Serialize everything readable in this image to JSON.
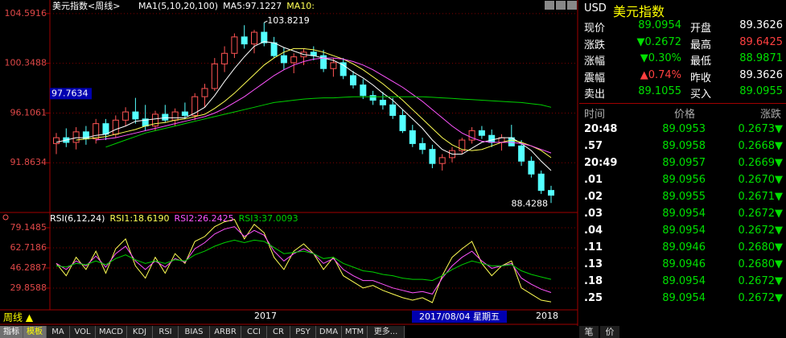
{
  "chart_data": [
    {
      "type": "candlestick",
      "title": "美元指数<周线>",
      "legend": [
        "MA1(5,10,20,100)",
        "MA5:97.1227",
        "MA10:"
      ],
      "up_color": "#ff5454",
      "down_color": "#54ffff",
      "ohlc": [
        [
          93.5,
          94.4,
          92.6,
          94.0
        ],
        [
          94.0,
          94.8,
          93.2,
          93.6
        ],
        [
          93.6,
          94.9,
          93.0,
          94.5
        ],
        [
          94.5,
          95.0,
          93.4,
          93.9
        ],
        [
          93.9,
          95.6,
          93.5,
          95.2
        ],
        [
          95.2,
          95.6,
          93.8,
          94.3
        ],
        [
          94.3,
          95.9,
          94.0,
          95.5
        ],
        [
          95.5,
          96.6,
          95.0,
          96.2
        ],
        [
          96.2,
          97.4,
          95.2,
          95.6
        ],
        [
          95.6,
          96.8,
          94.6,
          95.0
        ],
        [
          95.0,
          96.3,
          94.6,
          96.0
        ],
        [
          96.0,
          96.8,
          95.3,
          95.5
        ],
        [
          95.5,
          96.5,
          95.0,
          96.2
        ],
        [
          96.2,
          97.0,
          95.6,
          95.9
        ],
        [
          95.9,
          97.8,
          95.5,
          97.5
        ],
        [
          97.5,
          98.6,
          96.6,
          98.2
        ],
        [
          98.2,
          100.8,
          98.0,
          100.3
        ],
        [
          100.3,
          101.8,
          99.6,
          101.2
        ],
        [
          101.2,
          102.9,
          100.8,
          102.6
        ],
        [
          102.6,
          103.6,
          101.6,
          102.0
        ],
        [
          102.0,
          103.2,
          101.2,
          103.0
        ],
        [
          103.0,
          103.8219,
          101.8,
          102.1
        ],
        [
          102.1,
          102.6,
          100.8,
          101.0
        ],
        [
          101.0,
          101.7,
          99.8,
          100.4
        ],
        [
          100.4,
          101.2,
          99.5,
          100.9
        ],
        [
          100.9,
          101.6,
          100.2,
          101.3
        ],
        [
          101.3,
          101.8,
          100.6,
          101.0
        ],
        [
          101.0,
          101.5,
          99.6,
          99.9
        ],
        [
          99.9,
          100.8,
          99.2,
          100.4
        ],
        [
          100.4,
          100.8,
          99.0,
          99.3
        ],
        [
          99.3,
          99.7,
          98.2,
          98.5
        ],
        [
          98.5,
          99.0,
          97.3,
          97.6
        ],
        [
          97.6,
          98.0,
          96.8,
          97.2
        ],
        [
          97.2,
          97.9,
          96.4,
          96.8
        ],
        [
          96.8,
          97.4,
          95.6,
          95.9
        ],
        [
          95.9,
          96.4,
          94.4,
          94.6
        ],
        [
          94.6,
          95.1,
          93.2,
          93.5
        ],
        [
          93.5,
          94.0,
          92.6,
          93.0
        ],
        [
          93.0,
          93.4,
          91.4,
          91.8
        ],
        [
          91.8,
          92.6,
          91.2,
          92.3
        ],
        [
          92.3,
          93.2,
          91.9,
          92.9
        ],
        [
          92.9,
          94.0,
          92.6,
          93.8
        ],
        [
          93.8,
          94.9,
          93.5,
          94.6
        ],
        [
          94.6,
          95.0,
          93.9,
          94.2
        ],
        [
          94.2,
          94.7,
          93.2,
          93.6
        ],
        [
          93.6,
          94.3,
          92.9,
          94.0
        ],
        [
          94.0,
          95.1,
          93.4,
          93.3
        ],
        [
          93.3,
          93.8,
          91.6,
          92.0
        ],
        [
          92.0,
          92.4,
          90.6,
          90.9
        ],
        [
          90.9,
          91.2,
          89.2,
          89.5
        ],
        [
          89.5,
          89.9,
          88.4288,
          89.0954
        ]
      ],
      "series": [
        {
          "color": "#ffffff",
          "values": [
            93.6,
            93.8,
            94.0,
            94.0,
            94.2,
            94.3,
            94.7,
            95.0,
            95.4,
            95.5,
            95.6,
            95.7,
            95.7,
            95.7,
            96.1,
            96.6,
            97.6,
            98.8,
            99.9,
            100.9,
            101.8,
            102.2,
            102.1,
            101.7,
            101.4,
            101.1,
            101.0,
            100.8,
            100.6,
            100.2,
            99.6,
            99.1,
            98.5,
            97.8,
            97.2,
            96.4,
            95.6,
            94.8,
            93.8,
            93.0,
            92.6,
            92.6,
            93.1,
            93.6,
            93.8,
            94.0,
            94.0,
            93.5,
            92.9,
            92.0,
            91.2
          ]
        },
        {
          "color": "#ffff54",
          "values": [
            null,
            null,
            93.8,
            93.9,
            94.0,
            94.1,
            94.3,
            94.5,
            94.7,
            95.0,
            95.2,
            95.3,
            95.5,
            95.6,
            95.8,
            96.0,
            96.5,
            97.1,
            97.8,
            98.6,
            99.4,
            100.2,
            100.8,
            101.3,
            101.6,
            101.6,
            101.5,
            101.3,
            101.0,
            100.7,
            100.3,
            99.8,
            99.2,
            98.6,
            97.9,
            97.2,
            96.4,
            95.6,
            94.8,
            94.0,
            93.4,
            93.0,
            92.9,
            93.0,
            93.3,
            93.6,
            93.8,
            93.6,
            93.3,
            92.9,
            92.3
          ]
        },
        {
          "color": "#ff54ff",
          "values": [
            null,
            null,
            null,
            null,
            93.8,
            93.9,
            94.0,
            94.2,
            94.4,
            94.6,
            94.8,
            95.0,
            95.2,
            95.4,
            95.6,
            95.8,
            96.1,
            96.5,
            97.0,
            97.5,
            98.1,
            98.7,
            99.3,
            99.8,
            100.2,
            100.5,
            100.7,
            100.8,
            100.8,
            100.7,
            100.5,
            100.2,
            99.8,
            99.3,
            98.8,
            98.3,
            97.7,
            97.1,
            96.4,
            95.7,
            95.0,
            94.4,
            94.0,
            93.7,
            93.6,
            93.6,
            93.6,
            93.5,
            93.3,
            93.0,
            92.7
          ]
        },
        {
          "color": "#00d000",
          "values": [
            null,
            null,
            null,
            null,
            null,
            93.2,
            93.5,
            93.8,
            94.1,
            94.4,
            94.6,
            94.8,
            95.0,
            95.2,
            95.4,
            95.6,
            95.8,
            96.0,
            96.2,
            96.4,
            96.6,
            96.8,
            97.0,
            97.1,
            97.2,
            97.3,
            97.35,
            97.4,
            97.4,
            97.45,
            97.5,
            97.5,
            97.5,
            97.5,
            97.5,
            97.5,
            97.5,
            97.5,
            97.45,
            97.4,
            97.35,
            97.3,
            97.25,
            97.2,
            97.15,
            97.1,
            97.05,
            97.0,
            96.9,
            96.8,
            96.6
          ]
        }
      ],
      "cursor_price": 97.7634,
      "ylim": [
        87.76,
        105.75
      ],
      "yticks": [
        104.5916,
        100.3488,
        96.1061,
        91.8634
      ],
      "grid": true
    },
    {
      "type": "line",
      "legend": [
        "RSI(6,12,24)",
        "RSI1:18.6190",
        "RSI2:26.2425",
        "RSI3:37.0093"
      ],
      "series": [
        {
          "color": "#ffff54",
          "values": [
            50,
            40,
            55,
            45,
            60,
            42,
            62,
            70,
            48,
            38,
            55,
            42,
            58,
            50,
            68,
            72,
            80,
            84,
            86,
            70,
            82,
            75,
            55,
            45,
            60,
            66,
            58,
            45,
            55,
            40,
            35,
            30,
            32,
            28,
            25,
            22,
            20,
            22,
            18,
            40,
            55,
            62,
            68,
            50,
            40,
            48,
            52,
            30,
            25,
            20,
            18.619
          ]
        },
        {
          "color": "#ff54ff",
          "values": [
            50,
            45,
            52,
            48,
            56,
            47,
            58,
            64,
            52,
            45,
            52,
            47,
            54,
            51,
            62,
            67,
            74,
            78,
            80,
            72,
            77,
            73,
            60,
            52,
            58,
            62,
            58,
            50,
            54,
            45,
            40,
            36,
            36,
            33,
            30,
            28,
            26,
            27,
            25,
            38,
            48,
            55,
            60,
            52,
            46,
            48,
            50,
            38,
            33,
            29,
            26.2425
          ]
        },
        {
          "color": "#00d000",
          "values": [
            48,
            47,
            50,
            49,
            52,
            49,
            54,
            57,
            53,
            50,
            52,
            50,
            53,
            52,
            57,
            60,
            64,
            67,
            69,
            67,
            69,
            68,
            63,
            58,
            59,
            60,
            58,
            54,
            55,
            50,
            47,
            44,
            43,
            41,
            40,
            38,
            37,
            37,
            36,
            40,
            45,
            49,
            52,
            50,
            48,
            48,
            49,
            44,
            41,
            39,
            37.0093
          ]
        }
      ],
      "x_labels": [
        "2017",
        "2018"
      ],
      "cursor_date": "2017/08/04 星期五",
      "ylim": [
        12.1,
        89
      ],
      "yticks": [
        79.1485,
        62.7186,
        46.2887,
        29.8588
      ],
      "grid": true
    }
  ],
  "period": "周线 ▲",
  "tabs": [
    "指标",
    "模板",
    "MA",
    "VOL",
    "MACD",
    "KDJ",
    "RSI",
    "BIAS",
    "ARBR",
    "CCI",
    "CR",
    "PSY",
    "DMA",
    "MTM",
    "更多..."
  ],
  "panel": {
    "code": "USD",
    "name": "美元指数",
    "quote": [
      [
        "现价",
        "89.0954",
        "开盘",
        "89.3626"
      ],
      [
        "涨跌",
        "▼0.2672",
        "最高",
        "89.6425"
      ],
      [
        "涨幅",
        "▼0.30%",
        "最低",
        "88.9871"
      ],
      [
        "震幅",
        "▲0.74%",
        "昨收",
        "89.3626"
      ],
      [
        "卖出",
        "89.1055",
        "买入",
        "89.0955"
      ]
    ],
    "header": [
      "时间",
      "价格",
      "涨跌"
    ],
    "ticks": [
      [
        "20:48",
        "89.0953",
        "0.2673▼"
      ],
      [
        ".57",
        "89.0958",
        "0.2668▼"
      ],
      [
        "20:49",
        "89.0957",
        "0.2669▼"
      ],
      [
        ".01",
        "89.0956",
        "0.2670▼"
      ],
      [
        ".02",
        "89.0955",
        "0.2671▼"
      ],
      [
        ".03",
        "89.0954",
        "0.2672▼"
      ],
      [
        ".04",
        "89.0954",
        "0.2672▼"
      ],
      [
        ".11",
        "89.0946",
        "0.2680▼"
      ],
      [
        ".13",
        "89.0946",
        "0.2680▼"
      ],
      [
        ".18",
        "89.0954",
        "0.2672▼"
      ],
      [
        ".25",
        "89.0954",
        "0.2672▼"
      ]
    ],
    "bottom_tabs": [
      "笔",
      "价"
    ]
  }
}
